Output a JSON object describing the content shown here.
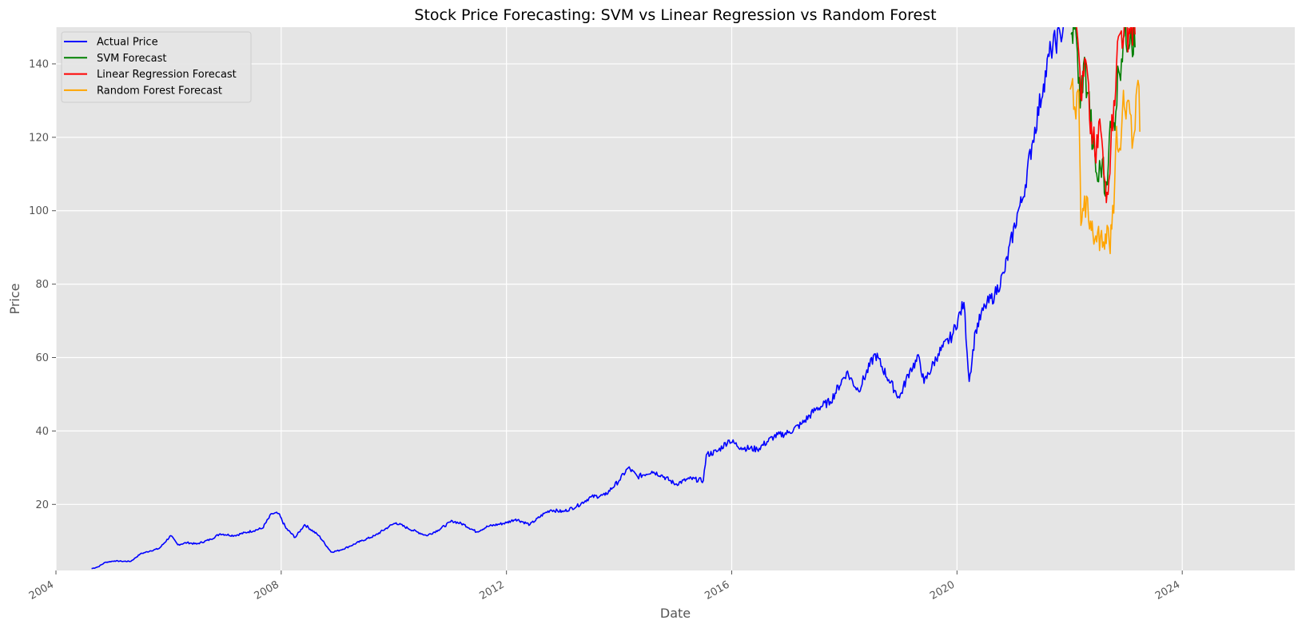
{
  "chart_data": {
    "type": "line",
    "title": "Stock Price Forecasting: SVM vs Linear Regression vs Random Forest",
    "xlabel": "Date",
    "ylabel": "Price",
    "x_axis": "date",
    "xlim": [
      "2004-01-01",
      "2025-12-31"
    ],
    "ylim": [
      2,
      150
    ],
    "x_ticks": [
      "2004",
      "2008",
      "2012",
      "2016",
      "2020",
      "2024"
    ],
    "y_ticks": [
      20,
      40,
      60,
      80,
      100,
      120,
      140
    ],
    "grid": true,
    "legend_position": "top-left",
    "series": [
      {
        "name": "Actual Price",
        "color": "#0000ff",
        "points": [
          [
            "2004-08-19",
            2.5
          ],
          [
            "2004-10-01",
            3.0
          ],
          [
            "2004-11-15",
            4.2
          ],
          [
            "2005-01-15",
            4.6
          ],
          [
            "2005-03-01",
            4.5
          ],
          [
            "2005-05-01",
            4.5
          ],
          [
            "2005-07-01",
            6.5
          ],
          [
            "2005-09-01",
            7.3
          ],
          [
            "2005-11-01",
            8.0
          ],
          [
            "2006-01-15",
            11.5
          ],
          [
            "2006-03-01",
            9.0
          ],
          [
            "2006-05-01",
            9.6
          ],
          [
            "2006-07-01",
            9.2
          ],
          [
            "2006-10-01",
            10.5
          ],
          [
            "2006-12-01",
            12.0
          ],
          [
            "2007-03-01",
            11.5
          ],
          [
            "2007-06-01",
            12.5
          ],
          [
            "2007-09-01",
            13.5
          ],
          [
            "2007-11-01",
            17.5
          ],
          [
            "2007-12-15",
            17.5
          ],
          [
            "2008-02-01",
            13.5
          ],
          [
            "2008-04-01",
            11.0
          ],
          [
            "2008-06-01",
            14.5
          ],
          [
            "2008-09-01",
            11.5
          ],
          [
            "2008-11-20",
            7.0
          ],
          [
            "2009-01-15",
            7.5
          ],
          [
            "2009-03-15",
            8.5
          ],
          [
            "2009-06-01",
            10.0
          ],
          [
            "2009-09-01",
            11.5
          ],
          [
            "2009-12-01",
            14.0
          ],
          [
            "2010-01-15",
            15.0
          ],
          [
            "2010-04-01",
            13.5
          ],
          [
            "2010-06-01",
            12.5
          ],
          [
            "2010-08-01",
            11.5
          ],
          [
            "2010-10-15",
            13.0
          ],
          [
            "2011-01-15",
            15.5
          ],
          [
            "2011-04-01",
            14.5
          ],
          [
            "2011-06-20",
            12.5
          ],
          [
            "2011-09-01",
            14.0
          ],
          [
            "2012-01-01",
            15.0
          ],
          [
            "2012-03-01",
            16.0
          ],
          [
            "2012-06-01",
            14.5
          ],
          [
            "2012-09-01",
            17.5
          ],
          [
            "2012-10-15",
            18.5
          ],
          [
            "2013-01-01",
            18.0
          ],
          [
            "2013-04-01",
            19.5
          ],
          [
            "2013-07-01",
            22.0
          ],
          [
            "2013-10-01",
            22.5
          ],
          [
            "2014-01-01",
            26.5
          ],
          [
            "2014-03-01",
            30.0
          ],
          [
            "2014-05-01",
            27.5
          ],
          [
            "2014-08-01",
            29.0
          ],
          [
            "2014-10-01",
            28.0
          ],
          [
            "2015-01-01",
            25.5
          ],
          [
            "2015-04-01",
            27.0
          ],
          [
            "2015-07-01",
            26.5
          ],
          [
            "2015-07-20",
            33.5
          ],
          [
            "2015-10-01",
            34.5
          ],
          [
            "2015-12-15",
            37.5
          ],
          [
            "2016-03-01",
            35.5
          ],
          [
            "2016-06-15",
            35.0
          ],
          [
            "2016-10-01",
            38.5
          ],
          [
            "2017-01-01",
            39.5
          ],
          [
            "2017-04-01",
            42.0
          ],
          [
            "2017-07-01",
            46.0
          ],
          [
            "2017-10-01",
            48.0
          ],
          [
            "2018-01-15",
            56.0
          ],
          [
            "2018-04-01",
            51.0
          ],
          [
            "2018-07-20",
            61.0
          ],
          [
            "2018-10-15",
            54.0
          ],
          [
            "2018-12-24",
            49.0
          ],
          [
            "2019-03-01",
            56.5
          ],
          [
            "2019-05-01",
            60.0
          ],
          [
            "2019-06-01",
            53.0
          ],
          [
            "2019-09-01",
            61.0
          ],
          [
            "2019-12-01",
            66.0
          ],
          [
            "2020-02-15",
            75.0
          ],
          [
            "2020-03-20",
            53.5
          ],
          [
            "2020-05-01",
            67.5
          ],
          [
            "2020-07-01",
            74.0
          ],
          [
            "2020-09-01",
            77.0
          ],
          [
            "2020-11-01",
            83.0
          ],
          [
            "2021-02-01",
            100.0
          ],
          [
            "2021-03-01",
            103.0
          ],
          [
            "2021-05-01",
            118.0
          ],
          [
            "2021-07-15",
            134.5
          ],
          [
            "2021-09-01",
            144.0
          ],
          [
            "2021-11-01",
            148.0
          ],
          [
            "2021-11-20",
            150.0
          ]
        ]
      },
      {
        "name": "SVM Forecast",
        "color": "#008000",
        "points": [
          [
            "2022-01-10",
            148.0
          ],
          [
            "2022-02-01",
            149.5
          ],
          [
            "2022-02-20",
            143.0
          ],
          [
            "2022-03-10",
            128.0
          ],
          [
            "2022-04-01",
            140.0
          ],
          [
            "2022-05-01",
            132.0
          ],
          [
            "2022-06-01",
            117.0
          ],
          [
            "2022-07-01",
            108.0
          ],
          [
            "2022-08-01",
            114.0
          ],
          [
            "2022-08-20",
            104.0
          ],
          [
            "2022-09-15",
            120.0
          ],
          [
            "2022-10-15",
            124.0
          ],
          [
            "2022-11-15",
            138.0
          ],
          [
            "2022-12-15",
            147.0
          ],
          [
            "2023-02-01",
            150.0
          ],
          [
            "2023-03-01",
            144.5
          ]
        ]
      },
      {
        "name": "Linear Regression Forecast",
        "color": "#ff0000",
        "points": [
          [
            "2022-02-15",
            150.0
          ],
          [
            "2022-03-01",
            143.0
          ],
          [
            "2022-03-20",
            130.0
          ],
          [
            "2022-04-15",
            141.0
          ],
          [
            "2022-05-10",
            125.0
          ],
          [
            "2022-06-01",
            120.0
          ],
          [
            "2022-06-20",
            113.0
          ],
          [
            "2022-07-15",
            125.0
          ],
          [
            "2022-08-10",
            110.0
          ],
          [
            "2022-09-01",
            105.0
          ],
          [
            "2022-09-25",
            118.0
          ],
          [
            "2022-10-15",
            130.0
          ],
          [
            "2022-11-01",
            140.0
          ],
          [
            "2022-11-20",
            148.0
          ],
          [
            "2022-12-20",
            150.0
          ],
          [
            "2023-02-01",
            150.0
          ],
          [
            "2023-03-01",
            148.0
          ]
        ]
      },
      {
        "name": "Random Forest Forecast",
        "color": "#ffa500",
        "points": [
          [
            "2022-01-05",
            133.0
          ],
          [
            "2022-01-20",
            136.0
          ],
          [
            "2022-02-10",
            125.0
          ],
          [
            "2022-02-25",
            133.0
          ],
          [
            "2022-03-05",
            121.0
          ],
          [
            "2022-03-15",
            96.0
          ],
          [
            "2022-04-01",
            100.0
          ],
          [
            "2022-04-20",
            104.0
          ],
          [
            "2022-05-10",
            95.0
          ],
          [
            "2022-06-01",
            93.5
          ],
          [
            "2022-06-25",
            91.5
          ],
          [
            "2022-07-20",
            93.0
          ],
          [
            "2022-08-15",
            89.5
          ],
          [
            "2022-09-01",
            96.0
          ],
          [
            "2022-09-15",
            91.0
          ],
          [
            "2022-10-01",
            95.0
          ],
          [
            "2022-10-20",
            108.0
          ],
          [
            "2022-11-01",
            123.0
          ],
          [
            "2022-11-20",
            117.0
          ],
          [
            "2022-12-10",
            128.0
          ],
          [
            "2023-01-01",
            125.0
          ],
          [
            "2023-01-20",
            130.0
          ],
          [
            "2023-02-10",
            117.0
          ],
          [
            "2023-03-01",
            122.0
          ],
          [
            "2023-03-20",
            135.5
          ],
          [
            "2023-04-01",
            121.5
          ]
        ]
      }
    ]
  }
}
